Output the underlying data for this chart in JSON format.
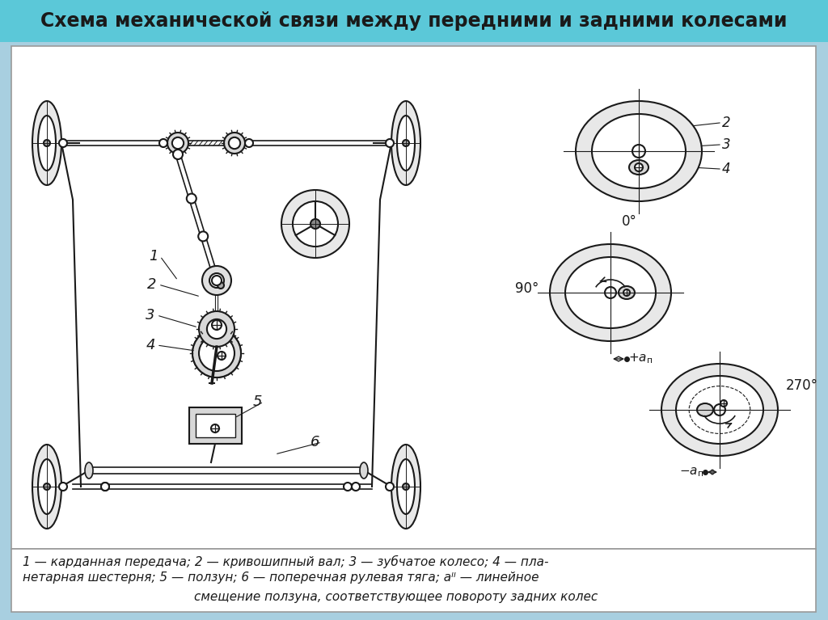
{
  "title": "Схема механической связи между передними и задними колесами",
  "bg_color": "#a8cfe0",
  "caption_line1": "1 — карданная передача; 2 — кривошипный вал; 3 — зубчатое колесо; 4 — пла-",
  "caption_line2": "нетарная шестерня; 5 — ползун; 6 — поперечная рулевая тяга; aᴵᴵ — линейное",
  "caption_line3": "смещение ползуна, соответствующее повороту задних колес"
}
